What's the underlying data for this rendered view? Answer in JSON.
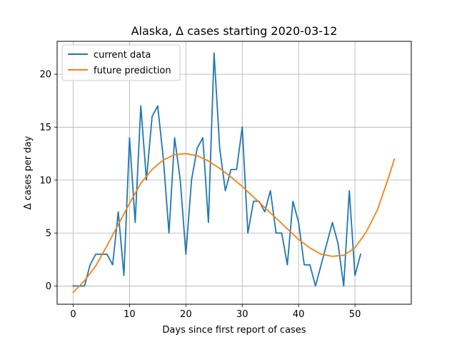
{
  "chart_data": {
    "type": "line",
    "title": "Alaska, Δ cases starting 2020-03-12",
    "xlabel": "Days since first report of cases",
    "ylabel": "Δ cases per day",
    "xlim": [
      -2.85,
      60.0
    ],
    "ylim": [
      -1.72,
      23.1
    ],
    "xticks": [
      0,
      10,
      20,
      30,
      40,
      50
    ],
    "yticks": [
      0,
      5,
      10,
      15,
      20
    ],
    "grid": true,
    "legend_position": "top-left",
    "series": [
      {
        "name": "current data",
        "color": "#1f77b4",
        "x": [
          0,
          1,
          2,
          3,
          4,
          5,
          6,
          7,
          8,
          9,
          10,
          11,
          12,
          13,
          14,
          15,
          16,
          17,
          18,
          19,
          20,
          21,
          22,
          23,
          24,
          25,
          26,
          27,
          28,
          29,
          30,
          31,
          32,
          33,
          34,
          35,
          36,
          37,
          38,
          39,
          40,
          41,
          42,
          43,
          44,
          45,
          46,
          47,
          48,
          49,
          50,
          51
        ],
        "y": [
          0,
          0,
          0,
          2,
          3,
          3,
          3,
          2,
          7,
          1,
          14,
          6,
          17,
          10,
          16,
          17,
          12,
          5,
          14,
          10,
          3,
          10,
          13,
          14,
          6,
          22,
          13,
          9,
          11,
          11,
          15,
          5,
          8,
          8,
          7,
          9,
          5,
          5,
          2,
          8,
          6,
          2,
          2,
          0,
          2,
          4,
          6,
          4,
          0,
          9,
          1,
          3
        ]
      },
      {
        "name": "future prediction",
        "color": "#ff7f0e",
        "x": [
          0,
          2,
          4,
          6,
          8,
          10,
          12,
          14,
          16,
          18,
          20,
          22,
          24,
          26,
          28,
          30,
          32,
          34,
          36,
          38,
          40,
          42,
          44,
          46,
          48,
          50,
          52,
          54,
          56,
          57
        ],
        "y": [
          -0.6,
          0.5,
          1.9,
          3.8,
          5.8,
          7.8,
          9.7,
          11.0,
          11.9,
          12.4,
          12.5,
          12.3,
          11.8,
          11.1,
          10.3,
          9.4,
          8.4,
          7.4,
          6.4,
          5.4,
          4.4,
          3.6,
          3.0,
          2.8,
          2.9,
          3.6,
          5.1,
          7.2,
          10.3,
          12.0
        ]
      }
    ]
  }
}
